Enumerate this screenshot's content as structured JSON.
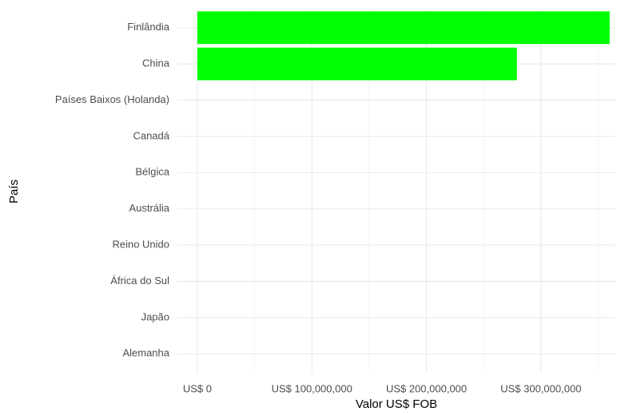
{
  "chart_data": {
    "type": "barh",
    "xlabel": "Valor US$ FOB",
    "ylabel": "País",
    "categories": [
      "Finlândia",
      "China",
      "Países Baixos (Holanda)",
      "Canadá",
      "Bélgica",
      "Austrália",
      "Reino Unido",
      "África do Sul",
      "Japão",
      "Alemanha"
    ],
    "values": [
      360000000,
      279000000,
      0,
      0,
      0,
      0,
      0,
      0,
      0,
      0
    ],
    "color": "#00ff00",
    "xlim": [
      -17400000,
      365000000
    ],
    "xticks": [
      {
        "value": 0,
        "label": "US$ 0"
      },
      {
        "value": 100000000,
        "label": "US$ 100,000,000"
      },
      {
        "value": 200000000,
        "label": "US$ 200,000,000"
      },
      {
        "value": 300000000,
        "label": "US$ 300,000,000"
      }
    ],
    "xminorticks": [
      50000000,
      150000000,
      250000000,
      350000000
    ],
    "grid": true
  }
}
